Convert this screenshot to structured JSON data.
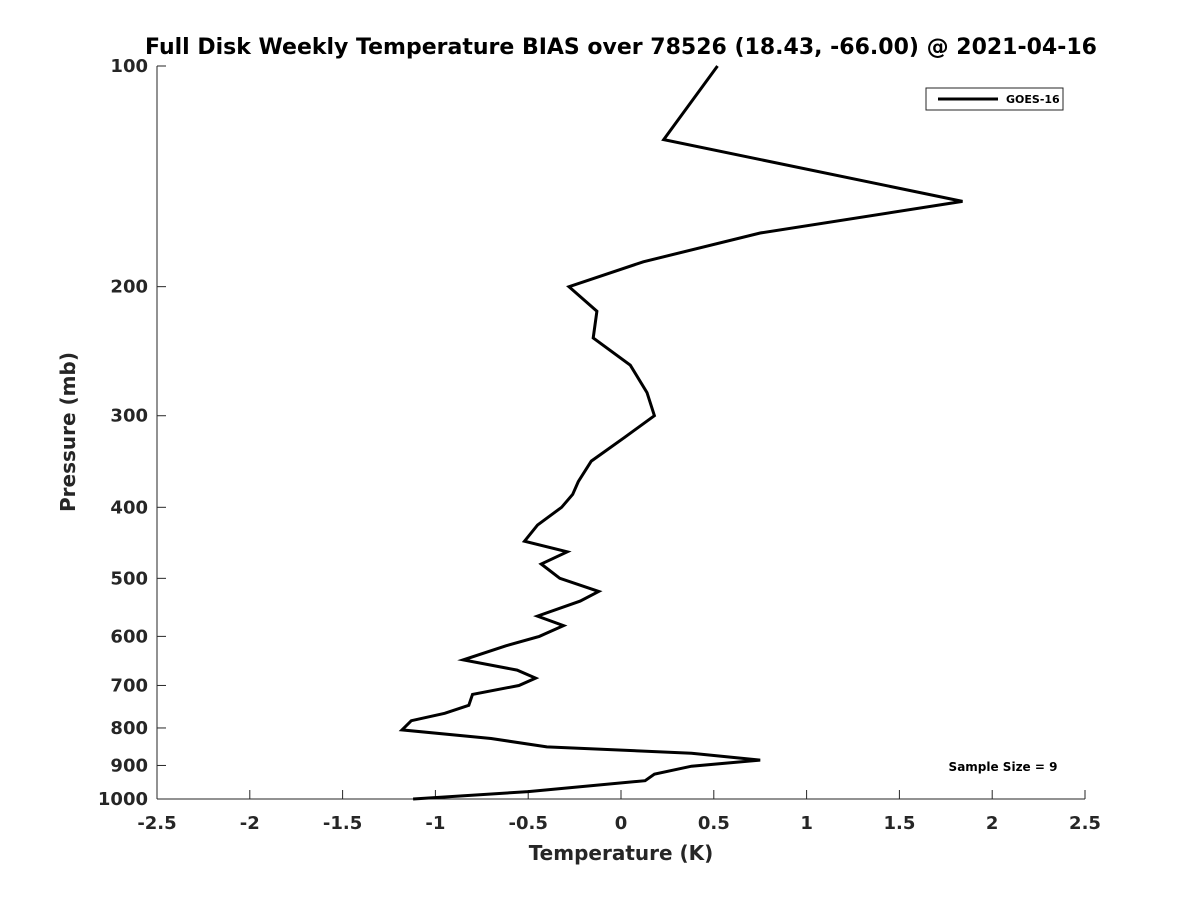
{
  "chart_data": {
    "type": "line",
    "title": "Full Disk Weekly Temperature BIAS over 78526 (18.43, -66.00) @ 2021-04-16",
    "xlabel": "Temperature (K)",
    "ylabel": "Pressure (mb)",
    "xlim": [
      -2.5,
      2.5
    ],
    "ylim": [
      1000,
      100
    ],
    "y_scale": "log",
    "y_reversed": true,
    "grid": false,
    "x_ticks": [
      -2.5,
      -2,
      -1.5,
      -1,
      -0.5,
      0,
      0.5,
      1,
      1.5,
      2,
      2.5
    ],
    "x_tick_labels": [
      "-2.5",
      "-2",
      "-1.5",
      "-1",
      "-0.5",
      "0",
      "0.5",
      "1",
      "1.5",
      "2",
      "2.5"
    ],
    "y_ticks": [
      100,
      200,
      300,
      400,
      500,
      600,
      700,
      800,
      900,
      1000
    ],
    "y_tick_labels": [
      "100",
      "200",
      "300",
      "400",
      "500",
      "600",
      "700",
      "800",
      "900",
      "1000"
    ],
    "legend_position": "top-right",
    "annotation": "Sample Size = 9",
    "series": [
      {
        "name": "GOES-16",
        "color": "#000000",
        "points": [
          {
            "x": 0.52,
            "y": 100
          },
          {
            "x": 0.23,
            "y": 126
          },
          {
            "x": 1.84,
            "y": 153
          },
          {
            "x": 0.75,
            "y": 169
          },
          {
            "x": 0.12,
            "y": 185
          },
          {
            "x": -0.28,
            "y": 200
          },
          {
            "x": -0.13,
            "y": 216
          },
          {
            "x": -0.15,
            "y": 235
          },
          {
            "x": 0.05,
            "y": 256
          },
          {
            "x": 0.14,
            "y": 279
          },
          {
            "x": 0.18,
            "y": 300
          },
          {
            "x": 0.02,
            "y": 321
          },
          {
            "x": -0.16,
            "y": 346
          },
          {
            "x": -0.23,
            "y": 369
          },
          {
            "x": -0.26,
            "y": 384
          },
          {
            "x": -0.32,
            "y": 400
          },
          {
            "x": -0.45,
            "y": 423
          },
          {
            "x": -0.52,
            "y": 445
          },
          {
            "x": -0.29,
            "y": 460
          },
          {
            "x": -0.43,
            "y": 478
          },
          {
            "x": -0.33,
            "y": 500
          },
          {
            "x": -0.12,
            "y": 521
          },
          {
            "x": -0.22,
            "y": 537
          },
          {
            "x": -0.45,
            "y": 563
          },
          {
            "x": -0.31,
            "y": 580
          },
          {
            "x": -0.44,
            "y": 600
          },
          {
            "x": -0.62,
            "y": 618
          },
          {
            "x": -0.85,
            "y": 646
          },
          {
            "x": -0.56,
            "y": 667
          },
          {
            "x": -0.46,
            "y": 684
          },
          {
            "x": -0.55,
            "y": 700
          },
          {
            "x": -0.8,
            "y": 720
          },
          {
            "x": -0.82,
            "y": 745
          },
          {
            "x": -0.95,
            "y": 764
          },
          {
            "x": -1.13,
            "y": 782
          },
          {
            "x": -1.18,
            "y": 805
          },
          {
            "x": -0.7,
            "y": 827
          },
          {
            "x": -0.4,
            "y": 849
          },
          {
            "x": 0.38,
            "y": 866
          },
          {
            "x": 0.75,
            "y": 885
          },
          {
            "x": 0.38,
            "y": 902
          },
          {
            "x": 0.18,
            "y": 925
          },
          {
            "x": 0.13,
            "y": 944
          },
          {
            "x": -0.5,
            "y": 977
          },
          {
            "x": -1.12,
            "y": 1000
          }
        ]
      }
    ]
  }
}
